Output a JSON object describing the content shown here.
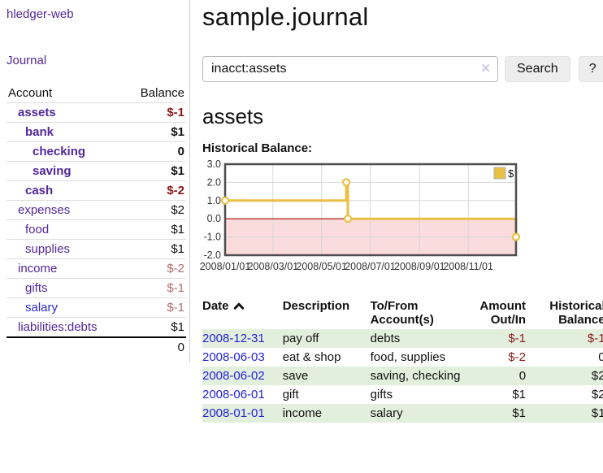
{
  "sidebar": {
    "brand": "hledger-web",
    "nav": {
      "journal": "Journal"
    },
    "accounts_table": {
      "headers": {
        "account": "Account",
        "balance": "Balance"
      },
      "rows": [
        {
          "name": "assets",
          "balance": "$-1",
          "indent": 1,
          "bold": true,
          "balance_class": "neg-strong"
        },
        {
          "name": "bank",
          "balance": "$1",
          "indent": 2,
          "bold": true,
          "balance_class": ""
        },
        {
          "name": "checking",
          "balance": "0",
          "indent": 3,
          "bold": true,
          "balance_class": ""
        },
        {
          "name": "saving",
          "balance": "$1",
          "indent": 3,
          "bold": true,
          "balance_class": ""
        },
        {
          "name": "cash",
          "balance": "$-2",
          "indent": 2,
          "bold": true,
          "balance_class": "neg-strong"
        },
        {
          "name": "expenses",
          "balance": "$2",
          "indent": 1,
          "bold": false,
          "balance_class": ""
        },
        {
          "name": "food",
          "balance": "$1",
          "indent": 2,
          "bold": false,
          "balance_class": ""
        },
        {
          "name": "supplies",
          "balance": "$1",
          "indent": 2,
          "bold": false,
          "balance_class": ""
        },
        {
          "name": "income",
          "balance": "$-2",
          "indent": 1,
          "bold": false,
          "balance_class": "neg-soft"
        },
        {
          "name": "gifts",
          "balance": "$-1",
          "indent": 2,
          "bold": false,
          "balance_class": "neg-soft"
        },
        {
          "name": "salary",
          "balance": "$-1",
          "indent": 2,
          "bold": false,
          "balance_class": "neg-soft",
          "unvisited": true
        },
        {
          "name": "liabilities:debts",
          "balance": "$1",
          "indent": 1,
          "bold": false,
          "balance_class": ""
        }
      ],
      "total": "0"
    }
  },
  "header": {
    "title": "sample.journal"
  },
  "search": {
    "value": "inacct:assets",
    "clear_icon": "✕",
    "button": "Search",
    "help_button": "?"
  },
  "account_page": {
    "title": "assets",
    "chart_label": "Historical Balance:"
  },
  "chart_data": {
    "type": "line",
    "subtype": "step-after",
    "title": "Historical Balance:",
    "series": [
      {
        "name": "$",
        "color": "#e9c044",
        "points": [
          [
            "2008-01-01",
            1
          ],
          [
            "2008-06-01",
            2
          ],
          [
            "2008-06-03",
            0
          ],
          [
            "2008-12-31",
            -1
          ]
        ]
      }
    ],
    "x_range": [
      "2008-01-01",
      "2008-12-31"
    ],
    "x_ticks": [
      "2008/01/01",
      "2008/03/01",
      "2008/05/01",
      "2008/07/01",
      "2008/09/01",
      "2008/11/01"
    ],
    "y_ticks": [
      3.0,
      2.0,
      1.0,
      0.0,
      -1.0,
      -2.0
    ],
    "ylim": [
      -2,
      3
    ],
    "grid": true,
    "legend_position": "top-right",
    "negative_region_color": "#fbdcdc",
    "zero_line_color": "#a40000",
    "border_color": "#4d4d4d",
    "grid_color": "#d8d8d8"
  },
  "register": {
    "headers": [
      "Date",
      "Description",
      "To/From Account(s)",
      "Amount Out/In",
      "Historical Balance"
    ],
    "sort": {
      "column": "Date",
      "direction": "ascending"
    },
    "rows": [
      {
        "date": "2008-12-31",
        "description": "pay off",
        "accounts": "debts",
        "amount": "$-1",
        "amount_neg": true,
        "balance": "$-1",
        "balance_neg": true
      },
      {
        "date": "2008-06-03",
        "description": "eat & shop",
        "accounts": "food, supplies",
        "amount": "$-2",
        "amount_neg": true,
        "balance": "0",
        "balance_neg": false
      },
      {
        "date": "2008-06-02",
        "description": "save",
        "accounts": "saving, checking",
        "amount": "0",
        "amount_neg": false,
        "balance": "$2",
        "balance_neg": false
      },
      {
        "date": "2008-06-01",
        "description": "gift",
        "accounts": "gifts",
        "amount": "$1",
        "amount_neg": false,
        "balance": "$2",
        "balance_neg": false
      },
      {
        "date": "2008-01-01",
        "description": "income",
        "accounts": "salary",
        "amount": "$1",
        "amount_neg": false,
        "balance": "$1",
        "balance_neg": false
      }
    ]
  }
}
